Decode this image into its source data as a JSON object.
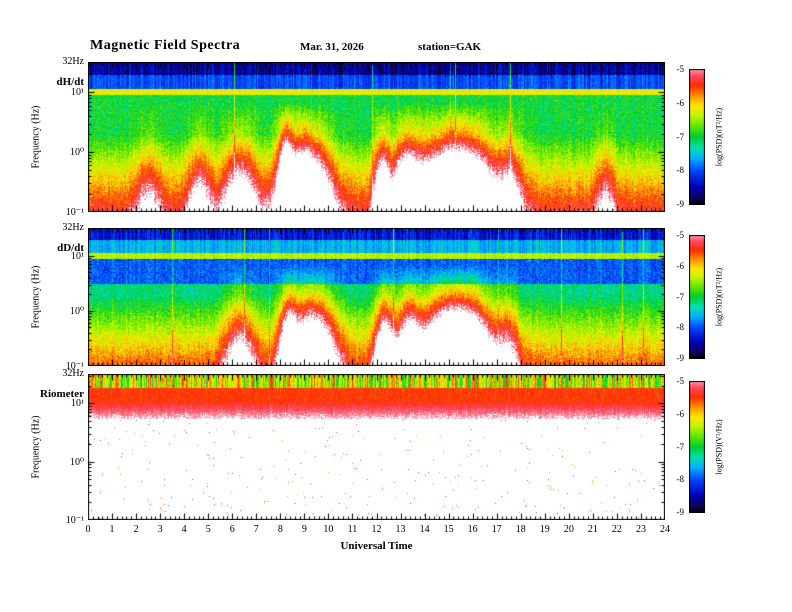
{
  "header": {
    "title": "Magnetic Field Spectra",
    "date": "Mar. 31, 2026",
    "station": "station=GAK"
  },
  "x_axis": {
    "label": "Universal Time",
    "ticks": [
      "0",
      "1",
      "2",
      "3",
      "4",
      "5",
      "6",
      "7",
      "8",
      "9",
      "10",
      "11",
      "12",
      "13",
      "14",
      "15",
      "16",
      "17",
      "18",
      "19",
      "20",
      "21",
      "22",
      "23",
      "24"
    ]
  },
  "panels": [
    {
      "label": "dH/dt",
      "y_label": "Frequency (Hz)",
      "top_tick": "32Hz",
      "yticks": [
        "10¹",
        "10⁰",
        "10⁻¹"
      ],
      "colorbar_label": "log(PSD)(nT²/Hz)",
      "colorbar_ticks": [
        "-5",
        "-6",
        "-7",
        "-8",
        "-9"
      ]
    },
    {
      "label": "dD/dt",
      "y_label": "Frequency (Hz)",
      "top_tick": "32Hz",
      "yticks": [
        "10¹",
        "10⁰",
        "10⁻¹"
      ],
      "colorbar_label": "log(PSD)(nT²/Hz)",
      "colorbar_ticks": [
        "-5",
        "-6",
        "-7",
        "-8",
        "-9"
      ]
    },
    {
      "label": "Riometer",
      "y_label": "Frequency (Hz)",
      "top_tick": "32Hz",
      "yticks": [
        "10¹",
        "10⁰",
        "10⁻¹"
      ],
      "colorbar_label": "log(PSD)(V²/Hz)",
      "colorbar_ticks": [
        "-5",
        "-6",
        "-7",
        "-8",
        "-9"
      ]
    }
  ],
  "chart_data": {
    "type": "heatmap",
    "title": "Magnetic Field Spectra",
    "date": "Mar. 31, 2026",
    "station": "GAK",
    "x": {
      "label": "Universal Time",
      "unit": "hours UT",
      "min": 0,
      "max": 24,
      "tick_step": 1
    },
    "y": {
      "label": "Frequency (Hz)",
      "scale": "log",
      "min_hz": 0.1,
      "max_hz": 32,
      "decade_ticks": [
        10,
        1,
        0.1
      ]
    },
    "color_axis": {
      "min": -9,
      "max": -5,
      "ticks": [
        -5,
        -6,
        -7,
        -8,
        -9
      ],
      "saturated_above": -5,
      "saturated_color": "white"
    },
    "colormap": [
      {
        "u": 0.0,
        "c": [
          0,
          0,
          0
        ]
      },
      {
        "u": 0.05,
        "c": [
          15,
          5,
          90
        ]
      },
      {
        "u": 0.13,
        "c": [
          0,
          0,
          180
        ]
      },
      {
        "u": 0.25,
        "c": [
          0,
          70,
          255
        ]
      },
      {
        "u": 0.34,
        "c": [
          0,
          175,
          255
        ]
      },
      {
        "u": 0.42,
        "c": [
          0,
          225,
          175
        ]
      },
      {
        "u": 0.5,
        "c": [
          0,
          205,
          50
        ]
      },
      {
        "u": 0.58,
        "c": [
          95,
          230,
          0
        ]
      },
      {
        "u": 0.66,
        "c": [
          195,
          245,
          0
        ]
      },
      {
        "u": 0.73,
        "c": [
          255,
          230,
          0
        ]
      },
      {
        "u": 0.8,
        "c": [
          255,
          150,
          0
        ]
      },
      {
        "u": 0.88,
        "c": [
          255,
          45,
          0
        ]
      },
      {
        "u": 0.95,
        "c": [
          255,
          70,
          90
        ]
      },
      {
        "u": 1.0,
        "c": [
          255,
          145,
          165
        ]
      }
    ],
    "panels": [
      {
        "name": "dH/dt",
        "colorbar_label": "log(PSD)(nT²/Hz)",
        "features": [
          "broadband ULF power (PSD -6 to >-5, red/white) below ~1 Hz all day",
          "strong enhancements reaching ~2 Hz (white, PSD > -5) near 08-10 UT and 13-17 UT",
          "narrow yellow-green line at 10 Hz",
          "low power (blue to black, PSD -8 to -9) above 10 Hz with a few vertical streaks",
          "green background (~-7) between ~1 and 10 Hz"
        ],
        "synth": {
          "kind": "mag",
          "top_level": -8.55,
          "upper_level": -8.0,
          "band_level": -6.2,
          "mid_level": -7.0,
          "mid_blue": null,
          "low_start_lf": 0.3,
          "low_slope": 1.3,
          "spike_prob": 0.009,
          "enh": [
            {
              "t": 9.0,
              "w": 0.75,
              "a": 1.5
            },
            {
              "t": 15.3,
              "w": 1.2,
              "a": 1.7
            },
            {
              "t": 13.2,
              "w": 0.4,
              "a": 1.0
            },
            {
              "t": 6.3,
              "w": 0.5,
              "a": 0.8
            },
            {
              "t": 4.6,
              "w": 0.35,
              "a": 0.6
            },
            {
              "t": 12.2,
              "w": 0.25,
              "a": 1.0
            },
            {
              "t": 8.2,
              "w": 0.2,
              "a": 1.2
            },
            {
              "t": 17.6,
              "w": 0.3,
              "a": 0.5
            },
            {
              "t": 21.5,
              "w": 0.3,
              "a": 0.4
            },
            {
              "t": 2.5,
              "w": 0.4,
              "a": 0.4
            }
          ]
        }
      },
      {
        "name": "dD/dt",
        "colorbar_label": "log(PSD)(nT²/Hz)",
        "features": [
          "broadband ULF power below ~1 Hz, white saturation near 09-10 UT and 14-16 UT",
          "blue quiet band (~-8) between ~3 and 9 Hz",
          "bright green line at 10 Hz, cyan-green above it up to ~20 Hz",
          "dark blue above 20 Hz with sparse vertical streaks"
        ],
        "synth": {
          "kind": "mag",
          "top_level": -8.3,
          "upper_level": -7.6,
          "band_level": -6.4,
          "mid_level": -7.2,
          "mid_blue": {
            "range": [
              0.5,
              0.96
            ],
            "level": -7.95
          },
          "low_start_lf": 0.3,
          "low_slope": 1.25,
          "spike_prob": 0.008,
          "enh": [
            {
              "t": 9.3,
              "w": 0.7,
              "a": 1.4
            },
            {
              "t": 15.3,
              "w": 1.1,
              "a": 1.8
            },
            {
              "t": 12.3,
              "w": 0.3,
              "a": 1.1
            },
            {
              "t": 6.3,
              "w": 0.5,
              "a": 0.7
            },
            {
              "t": 8.3,
              "w": 0.25,
              "a": 1.0
            },
            {
              "t": 13.3,
              "w": 0.35,
              "a": 0.9
            },
            {
              "t": 17.5,
              "w": 0.3,
              "a": 0.4
            }
          ]
        }
      },
      {
        "name": "Riometer",
        "colorbar_label": "log(PSD)(V²/Hz)",
        "features": [
          "striped green/yellow/red band (PSD -7.5 to -5) from ~20 to 32 Hz, all 24 hours",
          "solid red band (~-5.5) near 10-20 Hz fading to pink/white below ~6 Hz",
          "white (PSD > -5) below ~5 Hz with sparse red speckles"
        ],
        "synth": {
          "kind": "rio",
          "stripe_top_lf": 1.28,
          "stripe_level": -6.3,
          "red_band": {
            "range": [
              1.05,
              1.28
            ],
            "level": -5.5
          },
          "fade": {
            "range": [
              0.75,
              1.05
            ]
          },
          "speckle_density": 0.0035,
          "speckle_level": -5.6
        }
      }
    ]
  }
}
